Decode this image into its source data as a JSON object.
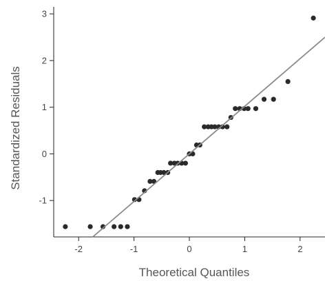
{
  "chart_data": {
    "type": "scatter",
    "title": "",
    "xlabel": "Theoretical Quantiles",
    "ylabel": "Standardized Residuals",
    "xlim": [
      -2.45,
      2.45
    ],
    "ylim": [
      -1.78,
      3.15
    ],
    "x_ticks": [
      -2,
      -1,
      0,
      1,
      2
    ],
    "y_ticks": [
      -1,
      0,
      1,
      2,
      3
    ],
    "x_tick_labels": [
      "-2",
      "-1",
      "0",
      "1",
      "2"
    ],
    "y_tick_labels": [
      "-1",
      "0",
      "1",
      "2",
      "3"
    ],
    "grid": false,
    "reference_line": {
      "intercept": 0,
      "slope": 1.02
    },
    "colors": {
      "points": "#2a2a2a",
      "line": "#8a8a8a",
      "axis": "#222222"
    },
    "series": [
      {
        "x": [
          -2.24,
          -1.79,
          -1.56,
          -1.36,
          -1.24,
          -1.12,
          -0.99,
          -0.91,
          -0.81,
          -0.71,
          -0.64,
          -0.57,
          -0.52,
          -0.46,
          -0.39,
          -0.34,
          -0.27,
          -0.21,
          -0.14,
          -0.07,
          0.0,
          0.06,
          0.13,
          0.19,
          0.27,
          0.34,
          0.4,
          0.46,
          0.53,
          0.6,
          0.68,
          0.75,
          0.83,
          0.91,
          0.99,
          1.06,
          1.2,
          1.35,
          1.52,
          1.78,
          2.24
        ],
        "y": [
          -1.56,
          -1.56,
          -1.56,
          -1.56,
          -1.56,
          -1.56,
          -0.98,
          -0.98,
          -0.79,
          -0.59,
          -0.59,
          -0.4,
          -0.4,
          -0.4,
          -0.4,
          -0.2,
          -0.2,
          -0.2,
          -0.2,
          -0.2,
          0.0,
          0.0,
          0.19,
          0.19,
          0.58,
          0.58,
          0.58,
          0.58,
          0.58,
          0.58,
          0.58,
          0.78,
          0.97,
          0.97,
          0.97,
          0.97,
          0.97,
          1.17,
          1.17,
          1.55,
          2.91
        ]
      }
    ]
  }
}
